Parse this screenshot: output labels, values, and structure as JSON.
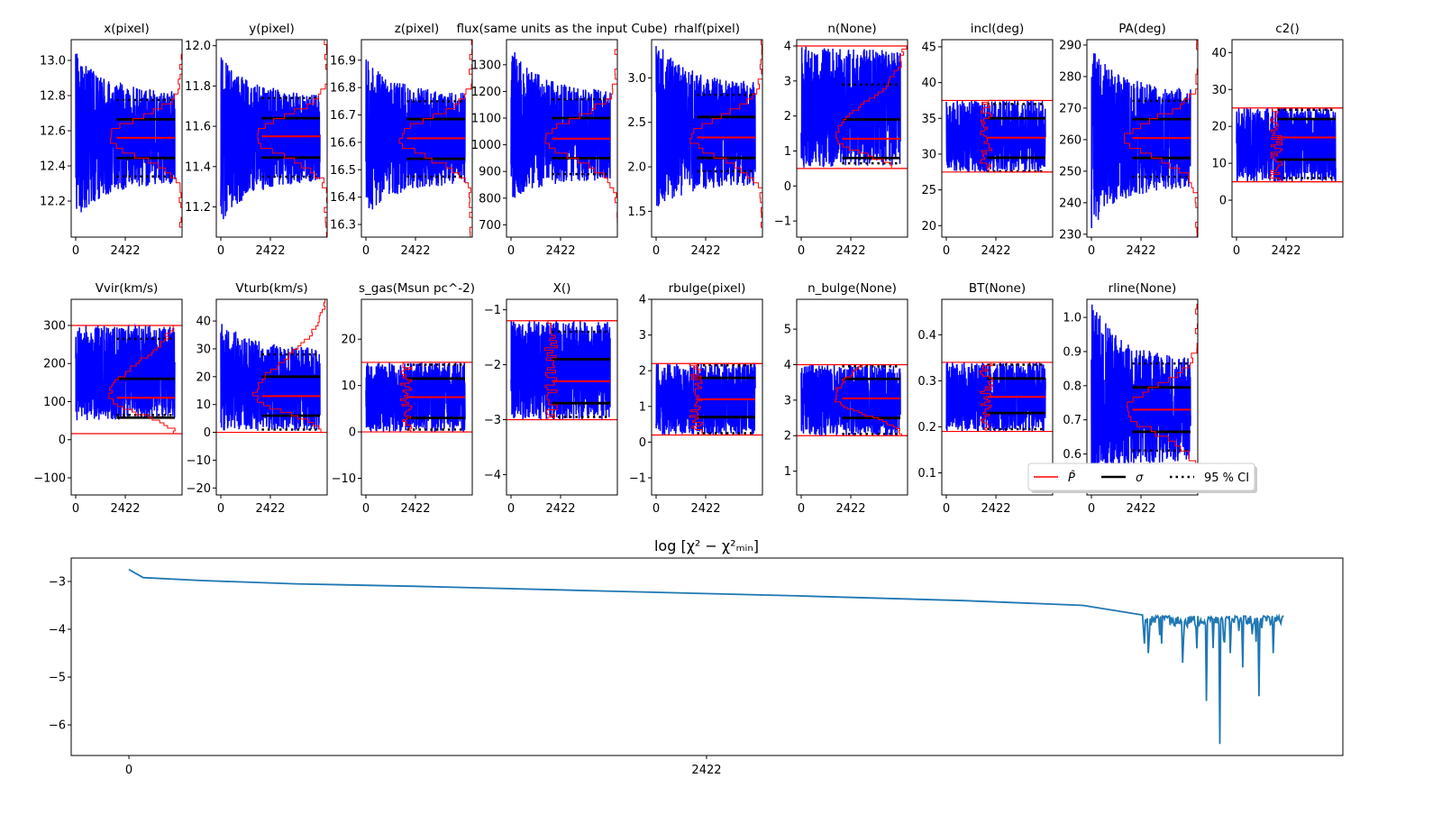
{
  "colors": {
    "trace": "#0000ff",
    "estimate": "#ff0000",
    "sigma": "#000000",
    "chi2": "#1f77b4"
  },
  "chart_data": {
    "type": "line",
    "x_tick_labels": [
      "0",
      "2422"
    ],
    "x_ticks": [
      0,
      2422
    ],
    "xlim": [
      -220,
      5196
    ],
    "n_samples": 4845,
    "legend": {
      "placement": "lower-right of second row",
      "entries": [
        {
          "label": "P̂",
          "style": "red-solid"
        },
        {
          "label": "σ",
          "style": "black-solid"
        },
        {
          "label": "95 % CI",
          "style": "black-dotted"
        }
      ]
    },
    "panels": [
      {
        "title": "x(pixel)",
        "ylim": [
          11.995,
          13.118
        ],
        "yticks": [
          12.2,
          12.4,
          12.6,
          12.8,
          13.0
        ],
        "ytick_labels": [
          "12.2",
          "12.4",
          "12.6",
          "12.8",
          "13.0"
        ],
        "median": 12.56,
        "sigma": [
          12.445,
          12.665
        ],
        "ci95": [
          12.34,
          12.775
        ],
        "trace_start": [
          12.1,
          13.05
        ],
        "trace_end": [
          12.3,
          12.82
        ],
        "hist": "gauss"
      },
      {
        "title": "y(pixel)",
        "ylim": [
          11.05,
          12.03
        ],
        "yticks": [
          11.2,
          11.4,
          11.6,
          11.8,
          12.0
        ],
        "ytick_labels": [
          "11.2",
          "11.4",
          "11.6",
          "11.8",
          "12.0"
        ],
        "median": 11.55,
        "sigma": [
          11.445,
          11.64
        ],
        "ci95": [
          11.35,
          11.74
        ],
        "trace_start": [
          11.12,
          11.95
        ],
        "trace_end": [
          11.33,
          11.76
        ],
        "hist": "gauss"
      },
      {
        "title": "z(pixel)",
        "ylim": [
          16.254,
          16.975
        ],
        "yticks": [
          16.3,
          16.4,
          16.5,
          16.6,
          16.7,
          16.8,
          16.9
        ],
        "ytick_labels": [
          "16.3",
          "16.4",
          "16.5",
          "16.6",
          "16.7",
          "16.8",
          "16.9"
        ],
        "median": 16.615,
        "sigma": [
          16.54,
          16.685
        ],
        "ci95": [
          16.475,
          16.75
        ],
        "trace_start": [
          16.33,
          16.91
        ],
        "trace_end": [
          16.45,
          16.78
        ],
        "hist": "gauss"
      },
      {
        "title": "flux(same units as the input Cube)",
        "ylim": [
          654,
          1394
        ],
        "yticks": [
          700,
          800,
          900,
          1000,
          1100,
          1200,
          1300
        ],
        "ytick_labels": [
          "700",
          "800",
          "900",
          "1000",
          "1100",
          "1200",
          "1300"
        ],
        "median": 1023,
        "sigma": [
          950,
          1100
        ],
        "ci95": [
          890,
          1170
        ],
        "trace_start": [
          790,
          1370
        ],
        "trace_end": [
          870,
          1200
        ],
        "hist": "gauss"
      },
      {
        "title": "rhalf(pixel)",
        "ylim": [
          1.21,
          3.43
        ],
        "yticks": [
          1.5,
          2.0,
          2.5,
          3.0
        ],
        "ytick_labels": [
          "1.5",
          "2.0",
          "2.5",
          "3.0"
        ],
        "median": 2.33,
        "sigma": [
          2.1,
          2.56
        ],
        "ci95": [
          1.95,
          2.81
        ],
        "trace_start": [
          1.5,
          3.43
        ],
        "trace_end": [
          1.8,
          2.95
        ],
        "hist": "gauss"
      },
      {
        "title": "n(None)",
        "ylim": [
          -1.46,
          4.18
        ],
        "yticks": [
          -1,
          0,
          1,
          2,
          3,
          4
        ],
        "ytick_labels": [
          "−1",
          "0",
          "1",
          "2",
          "3",
          "4"
        ],
        "median": 1.35,
        "sigma": [
          0.8,
          1.9
        ],
        "ci95": [
          0.65,
          2.9
        ],
        "trace_start": [
          0.5,
          4.0
        ],
        "trace_end": [
          0.55,
          3.9
        ],
        "bounds": [
          0.5,
          4.0
        ],
        "hist": "skew"
      },
      {
        "title": "incl(deg)",
        "ylim": [
          18.4,
          46.0
        ],
        "yticks": [
          20,
          25,
          30,
          35,
          40,
          45
        ],
        "ytick_labels": [
          "20",
          "25",
          "30",
          "35",
          "40",
          "45"
        ],
        "median": 32.3,
        "sigma": [
          29.5,
          35.0
        ],
        "ci95": [
          27.6,
          37.0
        ],
        "trace_start": [
          27.5,
          37.5
        ],
        "trace_end": [
          27.5,
          37.5
        ],
        "bounds": [
          27.5,
          37.5
        ],
        "hist": "flat"
      },
      {
        "title": "PA(deg)",
        "ylim": [
          229.1,
          291.7
        ],
        "yticks": [
          230,
          240,
          250,
          260,
          270,
          280,
          290
        ],
        "ytick_labels": [
          "230",
          "240",
          "250",
          "260",
          "270",
          "280",
          "290"
        ],
        "median": 260.5,
        "sigma": [
          254.2,
          266.5
        ],
        "ci95": [
          248.2,
          272.3
        ],
        "trace_start": [
          231,
          289
        ],
        "trace_end": [
          245,
          276
        ],
        "hist": "gauss"
      },
      {
        "title": "c2()",
        "ylim": [
          -10.0,
          43.5
        ],
        "yticks": [
          0,
          10,
          20,
          30,
          40
        ],
        "ytick_labels": [
          "0",
          "10",
          "20",
          "30",
          "40"
        ],
        "median": 17,
        "sigma": [
          11,
          22
        ],
        "ci95": [
          6,
          24.5
        ],
        "trace_start": [
          5,
          25
        ],
        "trace_end": [
          5,
          25
        ],
        "bounds": [
          5,
          25
        ],
        "hist": "flat"
      },
      {
        "title": "Vvir(km/s)",
        "ylim": [
          -145,
          368.6
        ],
        "yticks": [
          -100,
          0,
          100,
          200,
          300
        ],
        "ytick_labels": [
          "−100",
          "0",
          "100",
          "200",
          "300"
        ],
        "median": 110,
        "sigma": [
          58,
          160
        ],
        "ci95": [
          65,
          265
        ],
        "trace_start": [
          45,
          300
        ],
        "trace_end": [
          55,
          300
        ],
        "bounds": [
          16,
          300
        ],
        "hist": "skew"
      },
      {
        "title": "Vturb(km/s)",
        "ylim": [
          -22.5,
          47.8
        ],
        "yticks": [
          -20,
          -10,
          0,
          10,
          20,
          30,
          40
        ],
        "ytick_labels": [
          "−20",
          "−10",
          "0",
          "10",
          "20",
          "30",
          "40"
        ],
        "median": 13,
        "sigma": [
          6,
          20
        ],
        "ci95": [
          1,
          28
        ],
        "trace_start": [
          0.5,
          41
        ],
        "trace_end": [
          0.5,
          30
        ],
        "bounds": [
          0,
          50
        ],
        "hist": "skew"
      },
      {
        "title": "s_gas(Msun pc^-2)",
        "ylim": [
          -13.6,
          28.6
        ],
        "yticks": [
          -10,
          0,
          10,
          20
        ],
        "ytick_labels": [
          "−10",
          "0",
          "10",
          "20"
        ],
        "median": 7.5,
        "sigma": [
          3,
          11.5
        ],
        "ci95": [
          0.5,
          14.5
        ],
        "trace_start": [
          0,
          15
        ],
        "trace_end": [
          0,
          15
        ],
        "bounds": [
          0,
          15
        ],
        "hist": "flat"
      },
      {
        "title": "X()",
        "ylim": [
          -4.37,
          -0.81
        ],
        "yticks": [
          -4,
          -3,
          -2,
          -1
        ],
        "ytick_labels": [
          "−4",
          "−3",
          "−2",
          "−1"
        ],
        "median": -2.3,
        "sigma": [
          -2.7,
          -1.9
        ],
        "ci95": [
          -2.95,
          -1.4
        ],
        "trace_start": [
          -3.0,
          -1.2
        ],
        "trace_end": [
          -3.0,
          -1.2
        ],
        "bounds": [
          -3.0,
          -1.2
        ],
        "hist": "flat"
      },
      {
        "title": "rbulge(pixel)",
        "ylim": [
          -1.48,
          4.0
        ],
        "yticks": [
          -1,
          0,
          1,
          2,
          3,
          4
        ],
        "ytick_labels": [
          "−1",
          "0",
          "1",
          "2",
          "3",
          "4"
        ],
        "median": 1.2,
        "sigma": [
          0.7,
          1.8
        ],
        "ci95": [
          0.25,
          2.15
        ],
        "trace_start": [
          0.2,
          2.2
        ],
        "trace_end": [
          0.2,
          2.2
        ],
        "bounds": [
          0.2,
          2.2
        ],
        "hist": "flat"
      },
      {
        "title": "n_bulge(None)",
        "ylim": [
          0.33,
          5.84
        ],
        "yticks": [
          1,
          2,
          3,
          4,
          5
        ],
        "ytick_labels": [
          "1",
          "2",
          "3",
          "4",
          "5"
        ],
        "median": 3.05,
        "sigma": [
          2.5,
          3.6
        ],
        "ci95": [
          2.05,
          3.95
        ],
        "trace_start": [
          2.0,
          4.0
        ],
        "trace_end": [
          2.0,
          4.0
        ],
        "bounds": [
          2.0,
          4.0
        ],
        "hist": "skew"
      },
      {
        "title": "BT(None)",
        "ylim": [
          0.052,
          0.477
        ],
        "yticks": [
          0.1,
          0.2,
          0.3,
          0.4
        ],
        "ytick_labels": [
          "0.1",
          "0.2",
          "0.3",
          "0.4"
        ],
        "median": 0.265,
        "sigma": [
          0.23,
          0.305
        ],
        "ci95": [
          0.195,
          0.335
        ],
        "trace_start": [
          0.19,
          0.34
        ],
        "trace_end": [
          0.19,
          0.34
        ],
        "bounds": [
          0.19,
          0.34
        ],
        "hist": "flat"
      },
      {
        "title": "rline(None)",
        "ylim": [
          0.48,
          1.053
        ],
        "yticks": [
          0.6,
          0.7,
          0.8,
          0.9,
          1.0
        ],
        "ytick_labels": [
          "0.6",
          "0.7",
          "0.8",
          "0.9",
          "1.0"
        ],
        "median": 0.73,
        "sigma": [
          0.665,
          0.795
        ],
        "ci95": [
          0.61,
          0.865
        ],
        "trace_start": [
          0.52,
          1.05
        ],
        "trace_end": [
          0.58,
          0.88
        ],
        "hist": "gauss"
      }
    ],
    "chi2": {
      "title": "log  [χ² − χ²ₘᵢₙ]",
      "ylim": [
        -6.64,
        -2.51
      ],
      "yticks": [
        -6,
        -5,
        -4,
        -3
      ],
      "ytick_labels": [
        "−6",
        "−5",
        "−4",
        "−3"
      ],
      "xlim": [
        -242,
        5090
      ],
      "x": [
        0,
        60,
        300,
        700,
        1200,
        2000,
        2800,
        3500,
        4000,
        4250
      ],
      "y": [
        -2.75,
        -2.92,
        -2.98,
        -3.05,
        -3.1,
        -3.2,
        -3.3,
        -3.4,
        -3.5,
        -3.7
      ],
      "noisy_range": [
        4258,
        4844
      ],
      "noisy_level": [
        -3.72,
        -3.95
      ],
      "spikes_x": [
        4276,
        4330,
        4420,
        4480,
        4520,
        4576,
        4620,
        4670,
        4740,
        4800
      ],
      "spikes_y": [
        -4.5,
        -4.3,
        -4.7,
        -4.4,
        -5.5,
        -6.4,
        -4.5,
        -4.8,
        -5.4,
        -4.5
      ]
    }
  }
}
